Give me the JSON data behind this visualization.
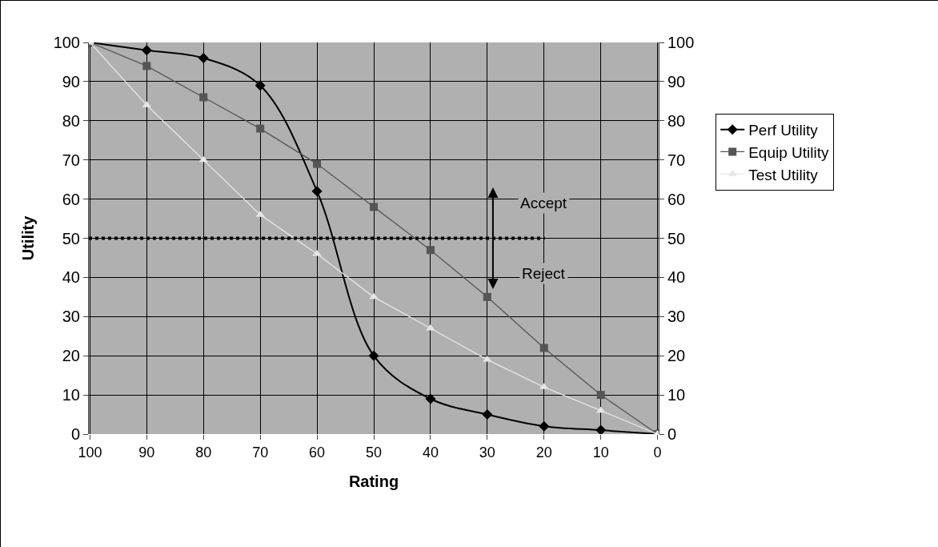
{
  "chart_data": {
    "type": "line",
    "xlabel": "Rating",
    "ylabel": "Utility",
    "categories": [
      "100",
      "90",
      "80",
      "70",
      "60",
      "50",
      "40",
      "30",
      "20",
      "10",
      "0"
    ],
    "series": [
      {
        "name": "Perf Utility",
        "color": "#000000",
        "marker": "diamond",
        "values": [
          100,
          98,
          96,
          89,
          62,
          20,
          9,
          5,
          2,
          1,
          0
        ]
      },
      {
        "name": "Equip Utility",
        "color": "#555555",
        "marker": "square",
        "values": [
          100,
          94,
          86,
          78,
          69,
          58,
          47,
          35,
          22,
          10,
          0
        ]
      },
      {
        "name": "Test Utility",
        "color": "#e6e6e6",
        "marker": "triangle",
        "values": [
          100,
          84,
          70,
          56,
          46,
          35,
          27,
          19,
          12,
          6,
          0
        ]
      }
    ],
    "ylim": [
      0,
      100
    ],
    "yticks": [
      0,
      10,
      20,
      30,
      40,
      50,
      60,
      70,
      80,
      90,
      100
    ],
    "y2lim": [
      0,
      100
    ],
    "y2ticks": [
      0,
      10,
      20,
      30,
      40,
      50,
      60,
      70,
      80,
      90,
      100
    ],
    "ref_lines": [
      {
        "axis": "y",
        "value": 50,
        "color": "#000000",
        "line_style": "dotted"
      }
    ],
    "annotations": [
      "Accept",
      "Reject"
    ],
    "grid": true,
    "legend": "right"
  }
}
